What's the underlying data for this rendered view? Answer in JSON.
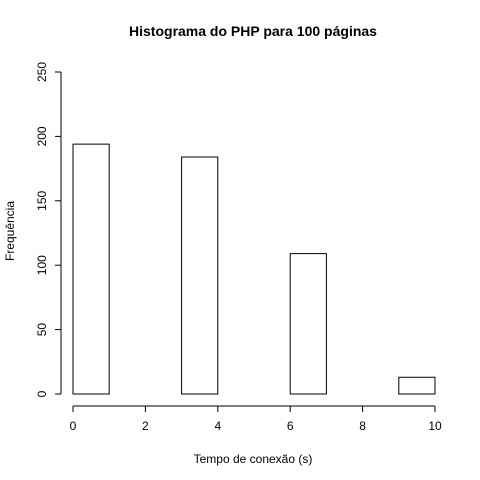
{
  "chart_data": {
    "type": "bar",
    "title": "Histograma do PHP para 100 páginas",
    "xlabel": "Tempo de conexão (s)",
    "ylabel": "Frequência",
    "xlim": [
      0,
      10
    ],
    "ylim": [
      0,
      250
    ],
    "xticks": [
      0,
      2,
      4,
      6,
      8,
      10
    ],
    "yticks": [
      0,
      50,
      100,
      150,
      200,
      250
    ],
    "bins": [
      {
        "x0": 0,
        "x1": 1,
        "count": 194
      },
      {
        "x0": 1,
        "x1": 2,
        "count": 0
      },
      {
        "x0": 2,
        "x1": 3,
        "count": 0
      },
      {
        "x0": 3,
        "x1": 4,
        "count": 184
      },
      {
        "x0": 4,
        "x1": 5,
        "count": 0
      },
      {
        "x0": 5,
        "x1": 6,
        "count": 0
      },
      {
        "x0": 6,
        "x1": 7,
        "count": 109
      },
      {
        "x0": 7,
        "x1": 8,
        "count": 0
      },
      {
        "x0": 8,
        "x1": 9,
        "count": 0
      },
      {
        "x0": 9,
        "x1": 10,
        "count": 13
      }
    ],
    "grid": false,
    "legend": "none"
  }
}
